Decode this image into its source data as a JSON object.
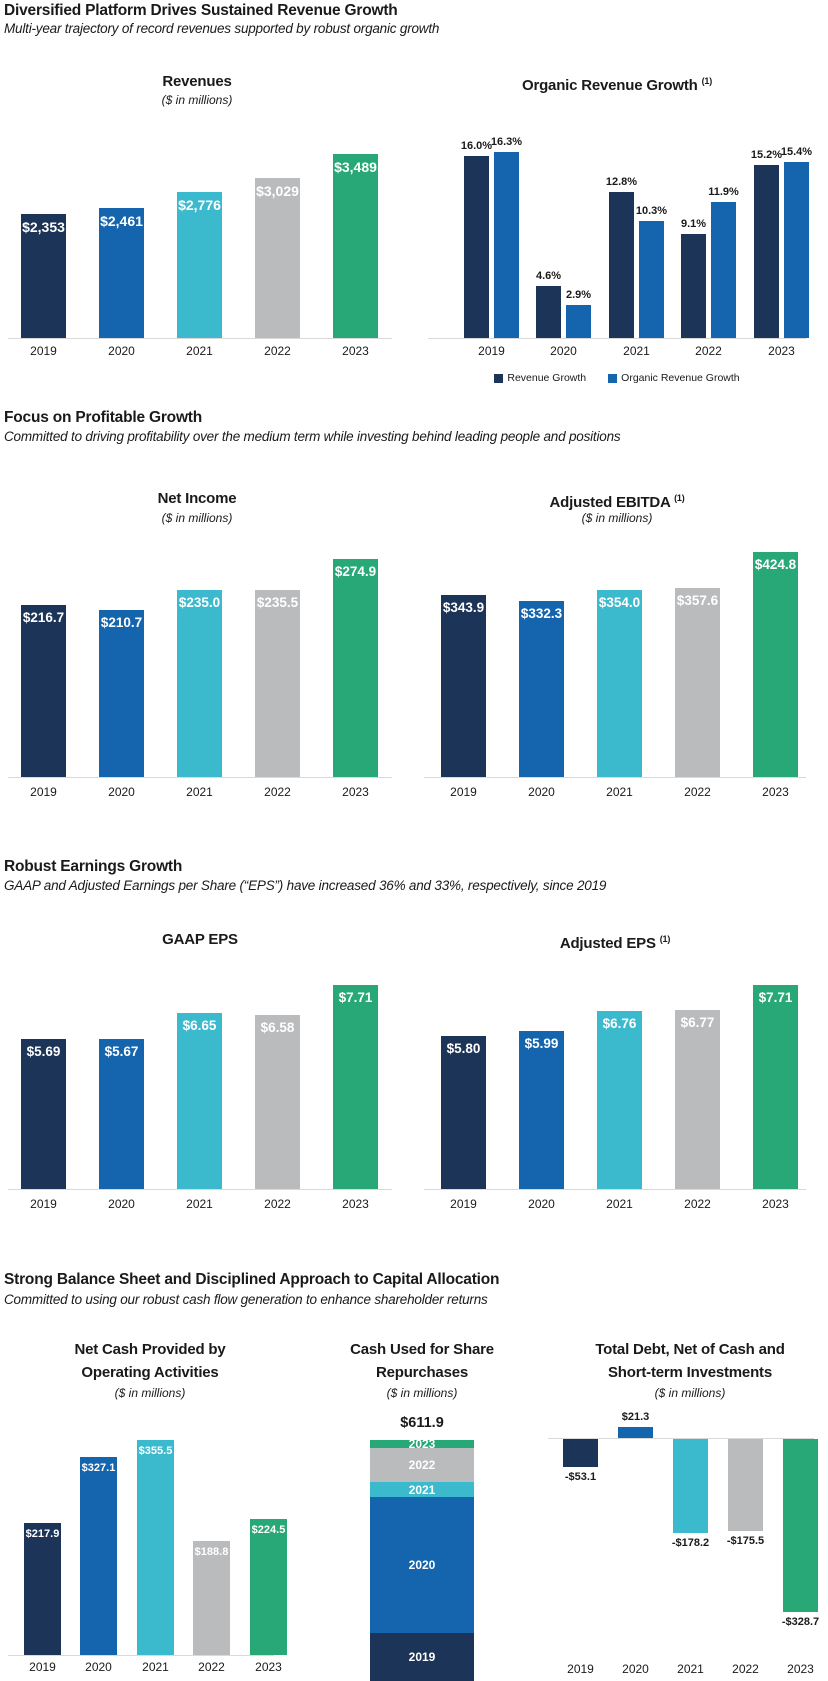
{
  "page": {
    "sections": [
      {
        "title": "Diversified Platform Drives Sustained Revenue Growth",
        "subtitle": "Multi-year trajectory of record revenues supported by robust organic growth"
      },
      {
        "title": "Focus on Profitable Growth",
        "subtitle": "Committed to driving profitability over the medium term while investing behind leading people and positions"
      },
      {
        "title": "Robust Earnings Growth",
        "subtitle": "GAAP and Adjusted Earnings per Share (“EPS”) have increased 36% and 33%, respectively, since 2019"
      },
      {
        "title": "Strong Balance Sheet and Disciplined Approach to Capital Allocation",
        "subtitle": "Committed to using our robust cash flow generation to enhance shareholder returns"
      }
    ]
  },
  "colors": {
    "year_2019_navy": "#1C3457",
    "year_2020_blue": "#1565AE",
    "year_2021_cyan": "#3BBACD",
    "year_2022_gray": "#B9BBBD",
    "year_2023_green": "#27A876",
    "axis_line": "#D9D9D9",
    "text": "#1A1A1A",
    "bar_value_text": "#FFFFFF"
  },
  "chart_data": [
    {
      "id": "revenues",
      "type": "bar",
      "title": "Revenues",
      "subtitle": "($ in millions)",
      "categories": [
        "2019",
        "2020",
        "2021",
        "2022",
        "2023"
      ],
      "values": [
        2353,
        2461,
        2776,
        3029,
        3489
      ],
      "labels": [
        "$2,353",
        "$2,461",
        "$2,776",
        "$3,029",
        "$3,489"
      ],
      "ylim": [
        0,
        3600
      ],
      "grid": false
    },
    {
      "id": "organic_revenue_growth",
      "type": "bar",
      "variant": "grouped",
      "title": "Organic Revenue Growth",
      "superscript": "(1)",
      "categories": [
        "2019",
        "2020",
        "2021",
        "2022",
        "2023"
      ],
      "series": [
        {
          "name": "Revenue Growth",
          "values": [
            16.0,
            4.6,
            12.8,
            9.1,
            15.2
          ],
          "labels": [
            "16.0%",
            "4.6%",
            "12.8%",
            "9.1%",
            "15.2%"
          ]
        },
        {
          "name": "Organic Revenue Growth",
          "values": [
            16.3,
            2.9,
            10.3,
            11.9,
            15.4
          ],
          "labels": [
            "16.3%",
            "2.9%",
            "10.3%",
            "11.9%",
            "15.4%"
          ]
        }
      ],
      "legend_position": "bottom",
      "ylim": [
        0,
        18
      ],
      "grid": false
    },
    {
      "id": "net_income",
      "type": "bar",
      "title": "Net Income",
      "subtitle": "($ in millions)",
      "categories": [
        "2019",
        "2020",
        "2021",
        "2022",
        "2023"
      ],
      "values": [
        216.7,
        210.7,
        235.0,
        235.5,
        274.9
      ],
      "labels": [
        "$216.7",
        "$210.7",
        "$235.0",
        "$235.5",
        "$274.9"
      ],
      "ylim": [
        0,
        300
      ],
      "grid": false
    },
    {
      "id": "adjusted_ebitda",
      "type": "bar",
      "title": "Adjusted EBITDA",
      "superscript": "(1)",
      "subtitle": "($ in millions)",
      "categories": [
        "2019",
        "2020",
        "2021",
        "2022",
        "2023"
      ],
      "values": [
        343.9,
        332.3,
        354.0,
        357.6,
        424.8
      ],
      "labels": [
        "$343.9",
        "$332.3",
        "$354.0",
        "$357.6",
        "$424.8"
      ],
      "ylim": [
        0,
        450
      ],
      "grid": false
    },
    {
      "id": "gaap_eps",
      "type": "bar",
      "title": "GAAP EPS",
      "categories": [
        "2019",
        "2020",
        "2021",
        "2022",
        "2023"
      ],
      "values": [
        5.69,
        5.67,
        6.65,
        6.58,
        7.71
      ],
      "labels": [
        "$5.69",
        "$5.67",
        "$6.65",
        "$6.58",
        "$7.71"
      ],
      "ylim": [
        0,
        8.5
      ],
      "grid": false
    },
    {
      "id": "adjusted_eps",
      "type": "bar",
      "title": "Adjusted EPS",
      "superscript": "(1)",
      "categories": [
        "2019",
        "2020",
        "2021",
        "2022",
        "2023"
      ],
      "values": [
        5.8,
        5.99,
        6.76,
        6.77,
        7.71
      ],
      "labels": [
        "$5.80",
        "$5.99",
        "$6.76",
        "$6.77",
        "$7.71"
      ],
      "ylim": [
        0,
        8.5
      ],
      "grid": false
    },
    {
      "id": "net_cash_operating",
      "type": "bar",
      "title": "Net Cash Provided by Operating Activities",
      "title_lines": [
        "Net Cash Provided by",
        "Operating Activities"
      ],
      "subtitle": "($ in millions)",
      "categories": [
        "2019",
        "2020",
        "2021",
        "2022",
        "2023"
      ],
      "values": [
        217.9,
        327.1,
        355.5,
        188.8,
        224.5
      ],
      "labels": [
        "$217.9",
        "$327.1",
        "$355.5",
        "$188.8",
        "$224.5"
      ],
      "ylim": [
        0,
        380
      ],
      "grid": false
    },
    {
      "id": "cash_share_repurchases",
      "type": "bar",
      "variant": "stacked_single",
      "title": "Cash Used for Share Repurchases",
      "title_lines": [
        "Cash Used for Share",
        "Repurchases"
      ],
      "subtitle": "($ in millions)",
      "total_label": "$611.9",
      "total_value": 611.9,
      "segments_top_to_bottom": [
        "2023",
        "2022",
        "2021",
        "2020",
        "2019"
      ]
    },
    {
      "id": "total_debt_net_of_cash",
      "type": "bar",
      "variant": "positive_negative",
      "title": "Total Debt, Net of Cash and Short-term Investments",
      "title_lines": [
        "Total Debt, Net of Cash and",
        "Short-term Investments"
      ],
      "subtitle": "($ in millions)",
      "categories": [
        "2019",
        "2020",
        "2021",
        "2022",
        "2023"
      ],
      "values": [
        -53.1,
        21.3,
        -178.2,
        -175.5,
        -328.7
      ],
      "labels": [
        "-$53.1",
        "$21.3",
        "-$178.2",
        "-$175.5",
        "-$328.7"
      ],
      "ylim": [
        -350,
        50
      ],
      "grid": false
    }
  ]
}
